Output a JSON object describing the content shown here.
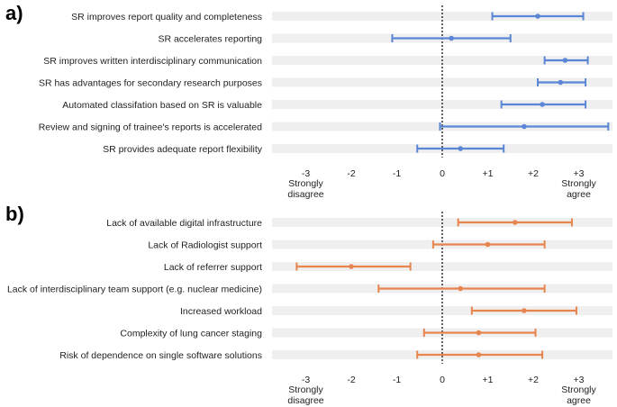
{
  "chart_data": [
    {
      "type": "errorbar",
      "panel_label": "a)",
      "series_color": "#5b86d6",
      "xlim": [
        -3.5,
        3.7
      ],
      "xticks": [
        -3,
        -2,
        -1,
        0,
        1,
        2,
        3
      ],
      "xtick_labels": [
        "-3",
        "-2",
        "-1",
        "0",
        "+1",
        "+2",
        "+3"
      ],
      "left_anchor": [
        "Strongly",
        "disagree"
      ],
      "right_anchor": [
        "Strongly",
        "agree"
      ],
      "reference_line": 0,
      "items": [
        {
          "label": "SR improves report quality and completeness",
          "mean": 2.1,
          "low": 1.1,
          "high": 3.1
        },
        {
          "label": "SR accelerates reporting",
          "mean": 0.2,
          "low": -1.1,
          "high": 1.5
        },
        {
          "label": "SR improves written interdisciplinary communication",
          "mean": 2.7,
          "low": 2.25,
          "high": 3.2
        },
        {
          "label": "SR has advantages for secondary research purposes",
          "mean": 2.6,
          "low": 2.1,
          "high": 3.15
        },
        {
          "label": "Automated classifation based on SR is valuable",
          "mean": 2.2,
          "low": 1.3,
          "high": 3.15
        },
        {
          "label": "Review and signing of trainee's reports is accelerated",
          "mean": 1.8,
          "low": -0.05,
          "high": 3.65
        },
        {
          "label": "SR provides adequate report flexibility",
          "mean": 0.4,
          "low": -0.55,
          "high": 1.35
        }
      ]
    },
    {
      "type": "errorbar",
      "panel_label": "b)",
      "series_color": "#e8844e",
      "xlim": [
        -3.5,
        3.7
      ],
      "xticks": [
        -3,
        -2,
        -1,
        0,
        1,
        2,
        3
      ],
      "xtick_labels": [
        "-3",
        "-2",
        "-1",
        "0",
        "+1",
        "+2",
        "+3"
      ],
      "left_anchor": [
        "Strongly",
        "disagree"
      ],
      "right_anchor": [
        "Strongly",
        "agree"
      ],
      "reference_line": 0,
      "items": [
        {
          "label": "Lack of available digital infrastructure",
          "mean": 1.6,
          "low": 0.35,
          "high": 2.85
        },
        {
          "label": "Lack of Radiologist support",
          "mean": 1.0,
          "low": -0.2,
          "high": 2.25
        },
        {
          "label": "Lack of referrer support",
          "mean": -2.0,
          "low": -3.2,
          "high": -0.7
        },
        {
          "label": "Lack of interdisciplinary team support (e.g. nuclear medicine)",
          "mean": 0.4,
          "low": -1.4,
          "high": 2.25
        },
        {
          "label": "Increased workload",
          "mean": 1.8,
          "low": 0.65,
          "high": 2.95
        },
        {
          "label": "Complexity of lung cancer staging",
          "mean": 0.8,
          "low": -0.4,
          "high": 2.05
        },
        {
          "label": "Risk of dependence on single software solutions",
          "mean": 0.8,
          "low": -0.55,
          "high": 2.2
        }
      ]
    }
  ]
}
